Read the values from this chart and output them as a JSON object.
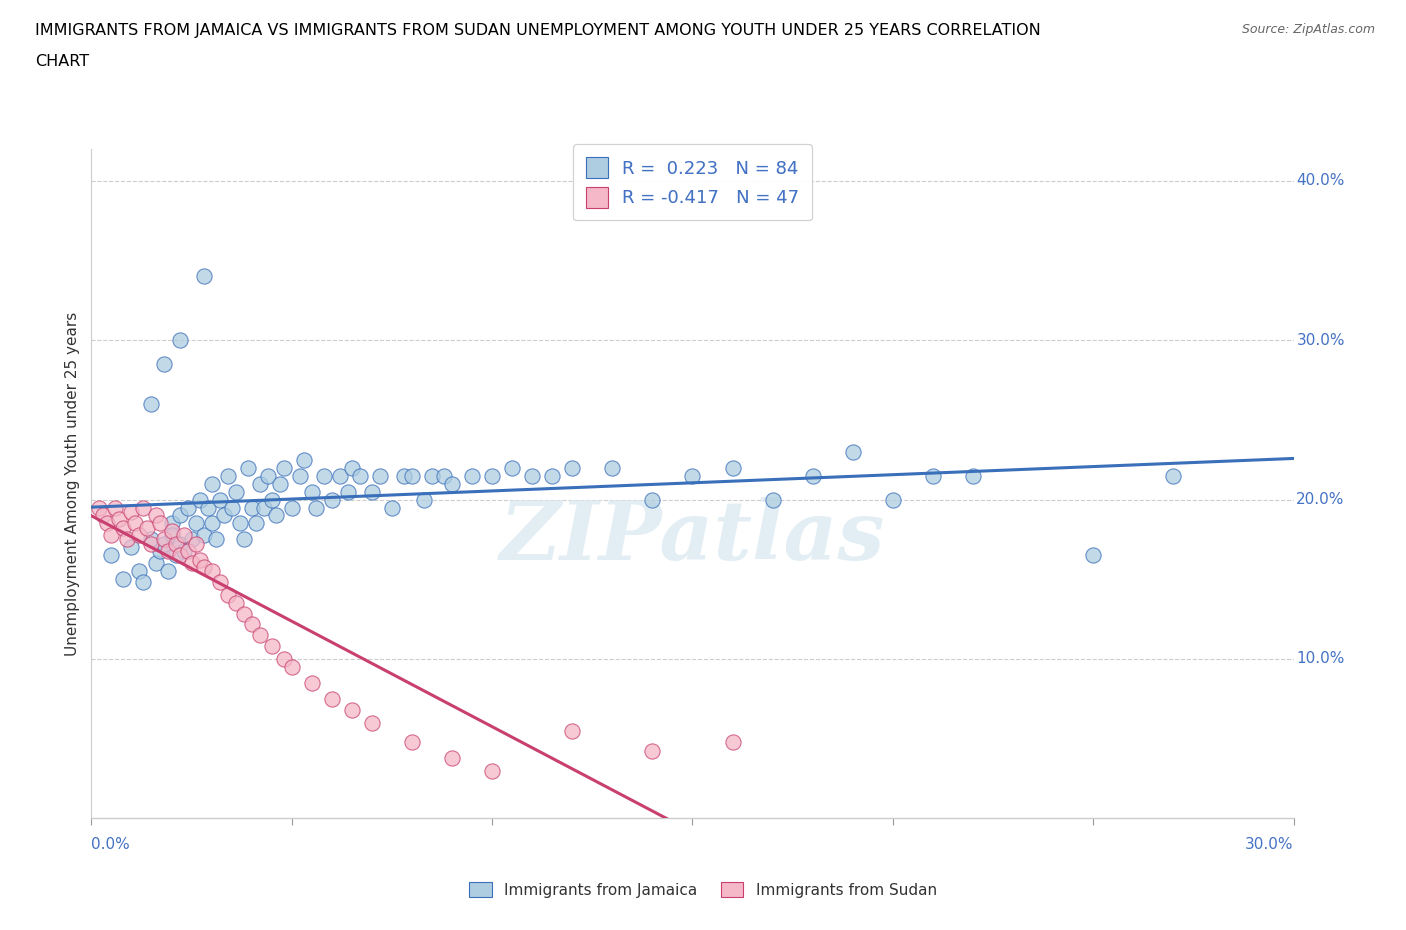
{
  "title_line1": "IMMIGRANTS FROM JAMAICA VS IMMIGRANTS FROM SUDAN UNEMPLOYMENT AMONG YOUTH UNDER 25 YEARS CORRELATION",
  "title_line2": "CHART",
  "source": "Source: ZipAtlas.com",
  "ylabel_label": "Unemployment Among Youth under 25 years",
  "xmin": 0.0,
  "xmax": 0.3,
  "ymin": 0.0,
  "ymax": 0.42,
  "x_tick_labels": [
    "0.0%",
    "30.0%"
  ],
  "y_tick_labels_right": [
    "10.0%",
    "20.0%",
    "30.0%",
    "40.0%"
  ],
  "y_tick_values": [
    0.1,
    0.2,
    0.3,
    0.4
  ],
  "jamaica_R": 0.223,
  "jamaica_N": 84,
  "sudan_R": -0.417,
  "sudan_N": 47,
  "jamaica_scatter_color": "#aecde1",
  "sudan_scatter_color": "#f4b8c8",
  "trend_jamaica_color": "#3a6fba",
  "trend_sudan_color": "#c94070",
  "watermark": "ZIPatlas",
  "legend_jamaica": "Immigrants from Jamaica",
  "legend_sudan": "Immigrants from Sudan",
  "jamaica_x": [
    0.005,
    0.008,
    0.01,
    0.012,
    0.013,
    0.015,
    0.016,
    0.017,
    0.018,
    0.019,
    0.02,
    0.02,
    0.021,
    0.022,
    0.022,
    0.023,
    0.024,
    0.025,
    0.026,
    0.027,
    0.028,
    0.029,
    0.03,
    0.03,
    0.031,
    0.032,
    0.033,
    0.034,
    0.035,
    0.036,
    0.037,
    0.038,
    0.039,
    0.04,
    0.041,
    0.042,
    0.043,
    0.044,
    0.045,
    0.046,
    0.047,
    0.048,
    0.05,
    0.052,
    0.053,
    0.055,
    0.056,
    0.058,
    0.06,
    0.062,
    0.064,
    0.065,
    0.067,
    0.07,
    0.072,
    0.075,
    0.078,
    0.08,
    0.083,
    0.085,
    0.088,
    0.09,
    0.095,
    0.1,
    0.105,
    0.11,
    0.115,
    0.12,
    0.13,
    0.14,
    0.15,
    0.16,
    0.17,
    0.18,
    0.19,
    0.2,
    0.21,
    0.22,
    0.25,
    0.27,
    0.015,
    0.018,
    0.022,
    0.028
  ],
  "jamaica_y": [
    0.165,
    0.15,
    0.17,
    0.155,
    0.148,
    0.175,
    0.16,
    0.168,
    0.172,
    0.155,
    0.185,
    0.178,
    0.165,
    0.19,
    0.172,
    0.168,
    0.195,
    0.175,
    0.185,
    0.2,
    0.178,
    0.195,
    0.21,
    0.185,
    0.175,
    0.2,
    0.19,
    0.215,
    0.195,
    0.205,
    0.185,
    0.175,
    0.22,
    0.195,
    0.185,
    0.21,
    0.195,
    0.215,
    0.2,
    0.19,
    0.21,
    0.22,
    0.195,
    0.215,
    0.225,
    0.205,
    0.195,
    0.215,
    0.2,
    0.215,
    0.205,
    0.22,
    0.215,
    0.205,
    0.215,
    0.195,
    0.215,
    0.215,
    0.2,
    0.215,
    0.215,
    0.21,
    0.215,
    0.215,
    0.22,
    0.215,
    0.215,
    0.22,
    0.22,
    0.2,
    0.215,
    0.22,
    0.2,
    0.215,
    0.23,
    0.2,
    0.215,
    0.215,
    0.165,
    0.215,
    0.26,
    0.285,
    0.3,
    0.34
  ],
  "sudan_x": [
    0.002,
    0.003,
    0.004,
    0.005,
    0.006,
    0.007,
    0.008,
    0.009,
    0.01,
    0.011,
    0.012,
    0.013,
    0.014,
    0.015,
    0.016,
    0.017,
    0.018,
    0.019,
    0.02,
    0.021,
    0.022,
    0.023,
    0.024,
    0.025,
    0.026,
    0.027,
    0.028,
    0.03,
    0.032,
    0.034,
    0.036,
    0.038,
    0.04,
    0.042,
    0.045,
    0.048,
    0.05,
    0.055,
    0.06,
    0.065,
    0.07,
    0.08,
    0.09,
    0.1,
    0.12,
    0.14,
    0.16
  ],
  "sudan_y": [
    0.195,
    0.19,
    0.185,
    0.178,
    0.195,
    0.188,
    0.182,
    0.175,
    0.192,
    0.185,
    0.178,
    0.195,
    0.182,
    0.172,
    0.19,
    0.185,
    0.175,
    0.168,
    0.18,
    0.172,
    0.165,
    0.178,
    0.168,
    0.16,
    0.172,
    0.162,
    0.158,
    0.155,
    0.148,
    0.14,
    0.135,
    0.128,
    0.122,
    0.115,
    0.108,
    0.1,
    0.095,
    0.085,
    0.075,
    0.068,
    0.06,
    0.048,
    0.038,
    0.03,
    0.055,
    0.042,
    0.048
  ]
}
